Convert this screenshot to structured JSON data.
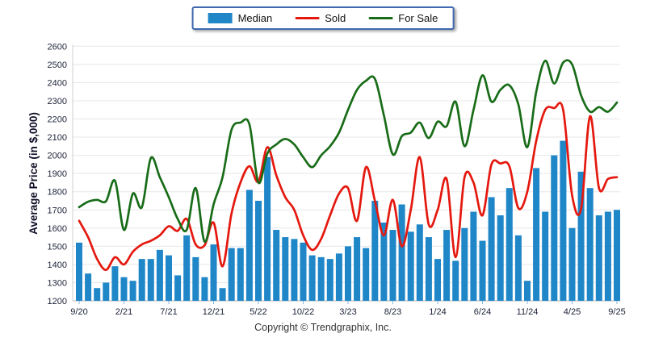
{
  "legend": {
    "items": [
      {
        "label": "Median",
        "type": "bar",
        "color": "#1f86c8"
      },
      {
        "label": "Sold",
        "type": "line",
        "color": "#e4180e"
      },
      {
        "label": "For Sale",
        "type": "line",
        "color": "#186c18"
      }
    ]
  },
  "footer": {
    "copyright": "Copyright © Trendgraphix, Inc."
  },
  "chart_data": {
    "type": "bar+line",
    "ylabel": "Average Price (in $,000)",
    "ylim": [
      1200,
      2600
    ],
    "ytick_step": 100,
    "grid": "horizontal",
    "legend_position": "top-center",
    "x_tick_labels": [
      "9/20",
      "2/21",
      "7/21",
      "12/21",
      "5/22",
      "10/22",
      "3/23",
      "8/23",
      "1/24",
      "6/24",
      "11/24",
      "4/25",
      "9/25"
    ],
    "months": [
      "9/20",
      "10/20",
      "11/20",
      "12/20",
      "1/21",
      "2/21",
      "3/21",
      "4/21",
      "5/21",
      "6/21",
      "7/21",
      "8/21",
      "9/21",
      "10/21",
      "11/21",
      "12/21",
      "1/22",
      "2/22",
      "3/22",
      "4/22",
      "5/22",
      "6/22",
      "7/22",
      "8/22",
      "9/22",
      "10/22",
      "11/22",
      "12/22",
      "1/23",
      "2/23",
      "3/23",
      "4/23",
      "5/23",
      "6/23",
      "7/23",
      "8/23",
      "9/23",
      "10/23",
      "11/23",
      "12/23",
      "1/24",
      "2/24",
      "3/24",
      "4/24",
      "5/24",
      "6/24",
      "7/24",
      "8/24",
      "9/24",
      "10/24",
      "11/24",
      "12/24",
      "1/25",
      "2/25",
      "3/25",
      "4/25",
      "5/25",
      "6/25",
      "7/25",
      "8/25",
      "9/25"
    ],
    "series": [
      {
        "name": "Median",
        "type": "bar",
        "color": "#1f86c8",
        "values": [
          1520,
          1350,
          1270,
          1300,
          1390,
          1330,
          1310,
          1430,
          1430,
          1480,
          1450,
          1340,
          1560,
          1440,
          1330,
          1510,
          1270,
          1490,
          1490,
          1810,
          1750,
          1990,
          1590,
          1550,
          1540,
          1520,
          1450,
          1440,
          1430,
          1460,
          1500,
          1550,
          1490,
          1750,
          1630,
          1590,
          1730,
          1580,
          1620,
          1550,
          1430,
          1590,
          1420,
          1600,
          1690,
          1530,
          1770,
          1670,
          1820,
          1560,
          1310,
          1930,
          1690,
          2000,
          2080,
          1600,
          1910,
          1820,
          1670,
          1690,
          1700
        ]
      },
      {
        "name": "Sold",
        "type": "line",
        "color": "#e4180e",
        "values": [
          1640,
          1550,
          1430,
          1370,
          1440,
          1400,
          1470,
          1510,
          1530,
          1560,
          1610,
          1585,
          1650,
          1510,
          1505,
          1630,
          1390,
          1680,
          1850,
          1940,
          1855,
          2045,
          1890,
          1770,
          1700,
          1560,
          1480,
          1540,
          1670,
          1790,
          1820,
          1640,
          1935,
          1750,
          1560,
          1755,
          1500,
          1700,
          1990,
          1620,
          1700,
          1870,
          1440,
          1880,
          1850,
          1670,
          1950,
          1955,
          1940,
          1710,
          1800,
          2080,
          2250,
          2260,
          2250,
          1780,
          1705,
          2215,
          1820,
          1870,
          1880
        ]
      },
      {
        "name": "For Sale",
        "type": "line",
        "color": "#186c18",
        "values": [
          1715,
          1745,
          1755,
          1748,
          1860,
          1590,
          1790,
          1715,
          1985,
          1880,
          1770,
          1650,
          1590,
          1820,
          1525,
          1730,
          1880,
          2140,
          2180,
          2170,
          1850,
          2010,
          2060,
          2090,
          2060,
          1990,
          1935,
          2000,
          2050,
          2125,
          2250,
          2360,
          2410,
          2420,
          2220,
          2005,
          2105,
          2125,
          2180,
          2095,
          2185,
          2160,
          2295,
          2050,
          2250,
          2440,
          2295,
          2360,
          2385,
          2280,
          2045,
          2350,
          2520,
          2395,
          2510,
          2500,
          2330,
          2240,
          2265,
          2240,
          2290
        ]
      }
    ]
  }
}
